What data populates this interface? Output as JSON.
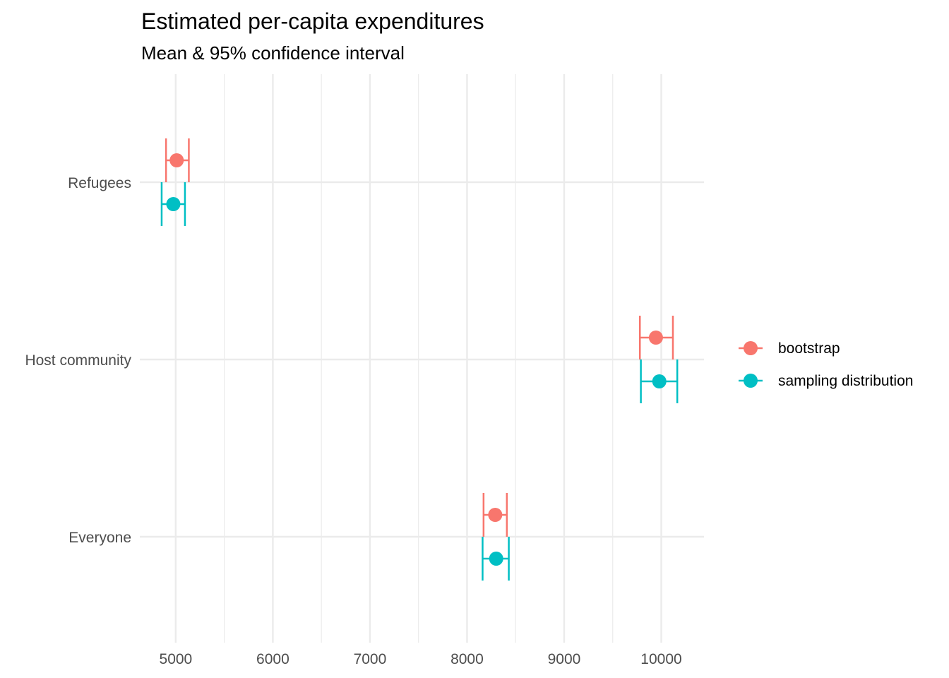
{
  "chart_data": {
    "type": "errorbar",
    "title": "Estimated per-capita expenditures",
    "subtitle": "Mean & 95% confidence interval",
    "xlabel": "",
    "ylabel": "",
    "categories": [
      "Refugees",
      "Host community",
      "Everyone"
    ],
    "xlim": [
      4630,
      10440
    ],
    "x_ticks": [
      5000,
      6000,
      7000,
      8000,
      9000,
      10000
    ],
    "x_tick_labels": [
      "5000",
      "6000",
      "7000",
      "8000",
      "9000",
      "10000"
    ],
    "grid": true,
    "legend_position": "right",
    "series": [
      {
        "name": "bootstrap",
        "color": "#F8766D",
        "points": [
          {
            "category": "Refugees",
            "mean": 5010,
            "lower": 4900,
            "upper": 5135
          },
          {
            "category": "Host community",
            "mean": 9945,
            "lower": 9780,
            "upper": 10120
          },
          {
            "category": "Everyone",
            "mean": 8290,
            "lower": 8170,
            "upper": 8410
          }
        ]
      },
      {
        "name": "sampling distribution",
        "color": "#00BFC4",
        "points": [
          {
            "category": "Refugees",
            "mean": 4975,
            "lower": 4855,
            "upper": 5095
          },
          {
            "category": "Host community",
            "mean": 9980,
            "lower": 9790,
            "upper": 10165
          },
          {
            "category": "Everyone",
            "mean": 8300,
            "lower": 8160,
            "upper": 8430
          }
        ]
      }
    ]
  }
}
